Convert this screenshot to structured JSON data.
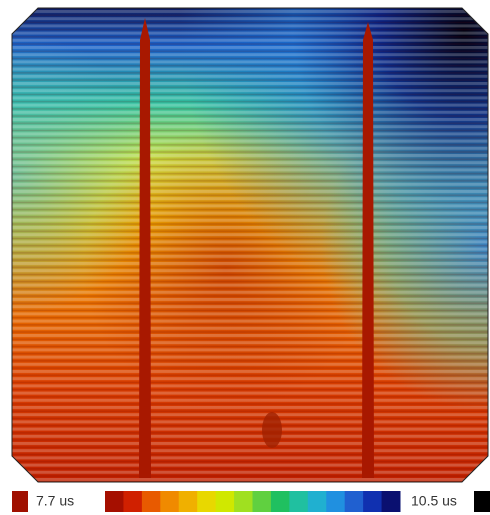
{
  "legend": {
    "min_label": "7.7 us",
    "max_label": "10.5 us"
  }
}
